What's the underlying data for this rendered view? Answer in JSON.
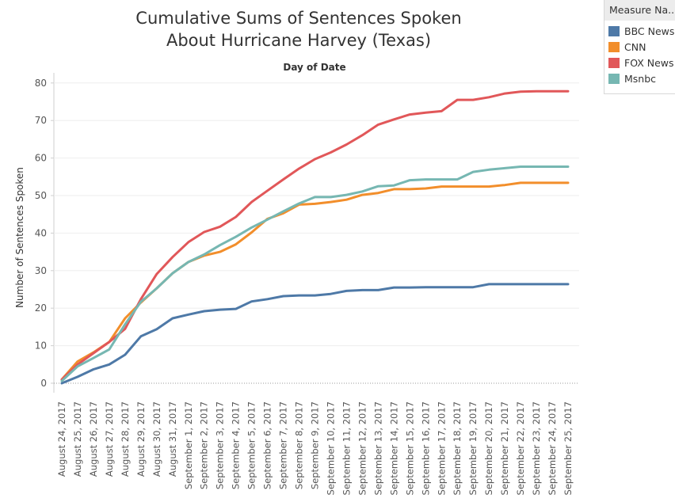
{
  "chart_data": {
    "type": "line",
    "title": [
      "Cumulative Sums of Sentences Spoken",
      "About Hurricane Harvey (Texas)"
    ],
    "subtitle": "Day of Date",
    "ylabel": "Number of Sentences Spoken",
    "xlabel": "",
    "ylim": [
      0,
      80
    ],
    "yticks": [
      0,
      10,
      20,
      30,
      40,
      50,
      60,
      70,
      80
    ],
    "grid": "horizontal",
    "legend_placement": "right",
    "categories": [
      "August 24, 2017",
      "August 25, 2017",
      "August 26, 2017",
      "August 27, 2017",
      "August 28, 2017",
      "August 29, 2017",
      "August 30, 2017",
      "August 31, 2017",
      "September 1, 2017",
      "September 2, 2017",
      "September 3, 2017",
      "September 4, 2017",
      "September 5, 2017",
      "September 6, 2017",
      "September 7, 2017",
      "September 8, 2017",
      "September 9, 2017",
      "September 10, 2017",
      "September 11, 2017",
      "September 12, 2017",
      "September 13, 2017",
      "September 14, 2017",
      "September 15, 2017",
      "September 16, 2017",
      "September 17, 2017",
      "September 18, 2017",
      "September 19, 2017",
      "September 20, 2017",
      "September 21, 2017",
      "September 22, 2017",
      "September 23, 2017",
      "September 24, 2017",
      "September 25, 2017"
    ],
    "series": [
      {
        "name": "BBC News",
        "color": "#4e79a7",
        "values": [
          0,
          1.7,
          3.7,
          5,
          7.6,
          12.5,
          14.4,
          17.3,
          18.3,
          19.2,
          19.6,
          19.8,
          21.8,
          22.4,
          23.2,
          23.4,
          23.4,
          23.8,
          24.6,
          24.8,
          24.8,
          25.5,
          25.5,
          25.6,
          25.6,
          25.6,
          25.6,
          26.4,
          26.4,
          26.4,
          26.4,
          26.4,
          26.4
        ]
      },
      {
        "name": "CNN",
        "color": "#f28e2b",
        "values": [
          1,
          5.8,
          8.2,
          11,
          17.3,
          21.5,
          25.3,
          29.3,
          32.3,
          34,
          35,
          37,
          40.2,
          43.8,
          45.3,
          47.6,
          47.8,
          48.3,
          48.9,
          50.2,
          50.7,
          51.7,
          51.7,
          51.9,
          52.4,
          52.4,
          52.4,
          52.4,
          52.8,
          53.4,
          53.4,
          53.4,
          53.4
        ]
      },
      {
        "name": "FOX News",
        "color": "#e15759",
        "values": [
          1,
          5,
          8,
          11,
          14.5,
          22.4,
          29.1,
          33.6,
          37.6,
          40.3,
          41.7,
          44.3,
          48.3,
          51.3,
          54.3,
          57.2,
          59.7,
          61.5,
          63.6,
          66.1,
          68.9,
          70.3,
          71.6,
          72.1,
          72.5,
          75.5,
          75.5,
          76.2,
          77.2,
          77.7,
          77.8,
          77.8,
          77.8
        ]
      },
      {
        "name": "Msnbc",
        "color": "#76b7b2",
        "values": [
          0.6,
          4.5,
          6.7,
          9,
          15.7,
          21.7,
          25.3,
          29.3,
          32.3,
          34.3,
          36.8,
          39,
          41.5,
          43.6,
          45.8,
          47.9,
          49.6,
          49.6,
          50.2,
          51.1,
          52.5,
          52.7,
          54.1,
          54.3,
          54.3,
          54.3,
          56.3,
          56.9,
          57.3,
          57.7,
          57.7,
          57.7,
          57.7
        ]
      }
    ]
  },
  "legend": {
    "title": "Measure Na...",
    "items": [
      "BBC News",
      "CNN",
      "FOX News",
      "Msnbc"
    ]
  }
}
